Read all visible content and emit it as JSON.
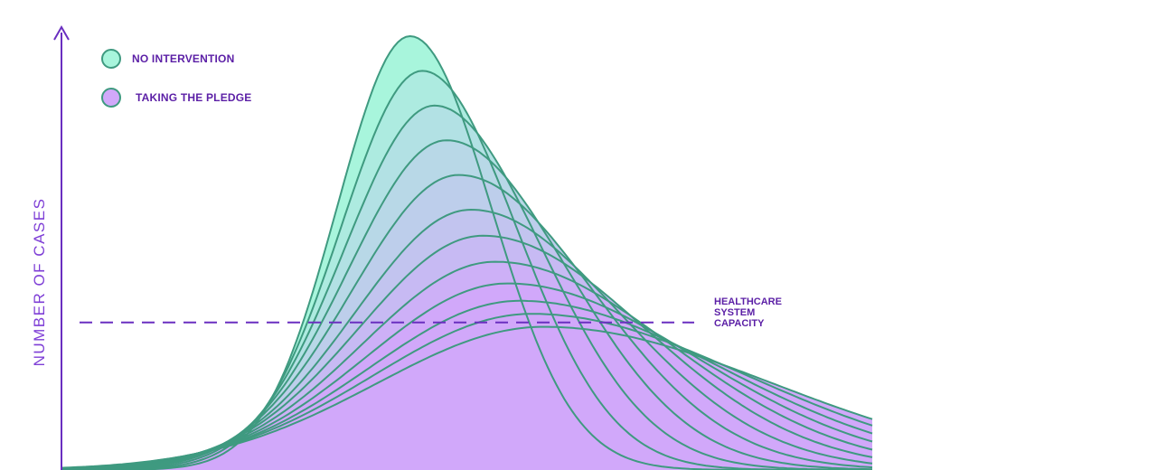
{
  "chart_data": {
    "type": "area",
    "title": "",
    "xlabel": "",
    "ylabel": "NUMBER OF CASES",
    "legend": [
      {
        "label": "NO INTERVENTION",
        "color": "#a8f5dc"
      },
      {
        "label": "TAKING THE PLEDGE",
        "color": "#d1a8fa"
      }
    ],
    "legend_position": "top-left",
    "grid": false,
    "ylim": [
      0,
      100
    ],
    "x_range": [
      0,
      100
    ],
    "capacity": {
      "value": 34,
      "label": [
        "HEALTHCARE",
        "SYSTEM",
        "CAPACITY"
      ]
    },
    "curves": [
      {
        "peak_x": 43,
        "peak_y": 100
      },
      {
        "peak_x": 44.5,
        "peak_y": 92
      },
      {
        "peak_x": 46,
        "peak_y": 84
      },
      {
        "peak_x": 47.5,
        "peak_y": 76
      },
      {
        "peak_x": 49,
        "peak_y": 68
      },
      {
        "peak_x": 50.5,
        "peak_y": 60
      },
      {
        "peak_x": 52,
        "peak_y": 54
      },
      {
        "peak_x": 53.5,
        "peak_y": 48
      },
      {
        "peak_x": 55,
        "peak_y": 43
      },
      {
        "peak_x": 56.5,
        "peak_y": 39
      },
      {
        "peak_x": 58,
        "peak_y": 36
      },
      {
        "peak_x": 59.5,
        "peak_y": 33
      }
    ]
  },
  "colors": {
    "curve_stroke": "#3f9a80",
    "top_fill": "#a8f5dc",
    "bottom_fill": "#d1a8fa",
    "axis": "#6a2fc0",
    "dash": "#6a2fc0"
  }
}
